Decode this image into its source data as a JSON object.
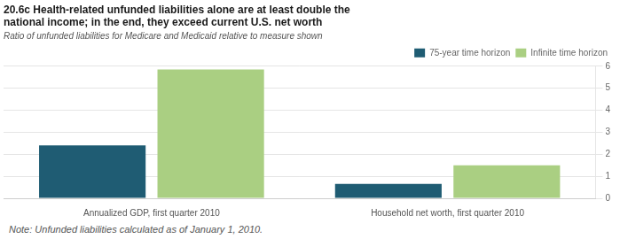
{
  "chart_data": {
    "type": "bar",
    "title": "20.6c Health-related unfunded liabilities alone are at least double the\nnational income; in the end, they exceed current U.S. net worth",
    "subtitle": "Ratio of unfunded liabilities for Medicare and Medicaid relative to measure shown",
    "note": "Note: Unfunded liabilities calculated as of January 1, 2010.",
    "categories": [
      "Annualized GDP, first quarter 2010",
      "Household net worth, first quarter 2010"
    ],
    "series": [
      {
        "name": "75-year time horizon",
        "color": "#1f5c73",
        "values": [
          2.4,
          0.65
        ]
      },
      {
        "name": "Infinite time horizon",
        "color": "#aacf82",
        "values": [
          5.85,
          1.5
        ]
      }
    ],
    "ylim": [
      0,
      6
    ],
    "yticks": [
      0,
      1,
      2,
      3,
      4,
      5,
      6
    ],
    "grid": true,
    "legend": "upper right"
  }
}
